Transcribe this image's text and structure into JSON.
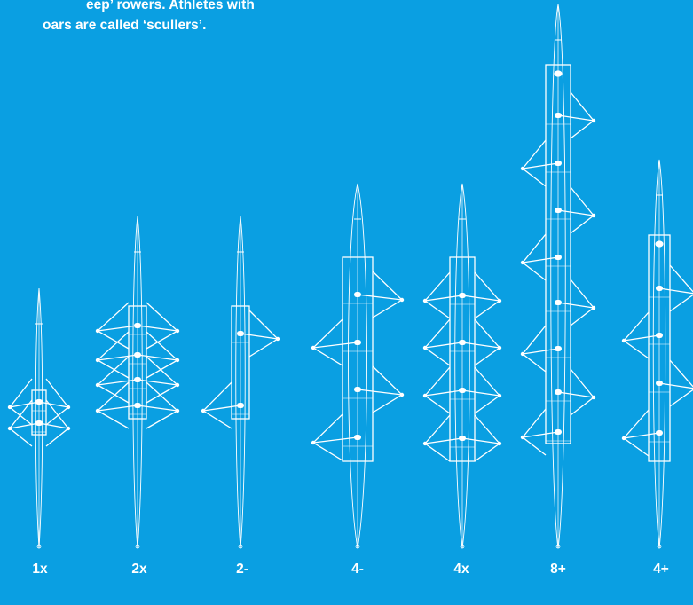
{
  "intro": {
    "line1": "eep’ rowers. Athletes with",
    "line2": "oars are called ‘scullers’."
  },
  "colors": {
    "background": "#0a9fe2",
    "line": "#ffffff"
  },
  "boats": [
    {
      "label": "1x",
      "type": "sculling",
      "rowers": 1,
      "coxed": false
    },
    {
      "label": "2x",
      "type": "sculling",
      "rowers": 2,
      "coxed": false
    },
    {
      "label": "2-",
      "type": "sweep",
      "rowers": 2,
      "coxed": false
    },
    {
      "label": "4-",
      "type": "sweep",
      "rowers": 4,
      "coxed": false
    },
    {
      "label": "4x",
      "type": "sculling",
      "rowers": 4,
      "coxed": false
    },
    {
      "label": "8+",
      "type": "sweep",
      "rowers": 8,
      "coxed": true
    },
    {
      "label": "4+",
      "type": "sweep",
      "rowers": 4,
      "coxed": true
    }
  ]
}
